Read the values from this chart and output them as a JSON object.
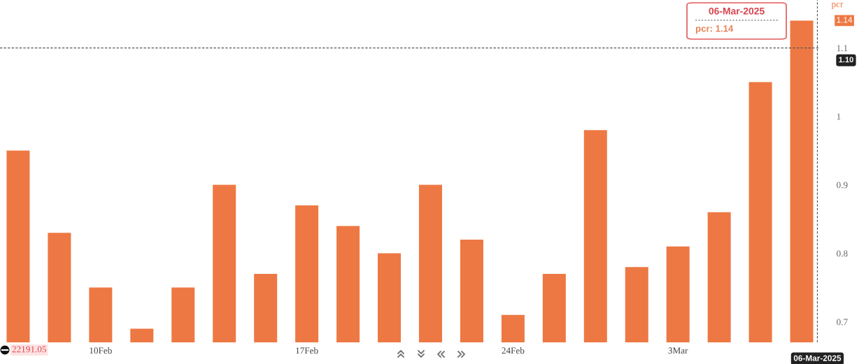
{
  "chart_data": {
    "type": "bar",
    "ylabel": "pcr",
    "categories": [
      null,
      null,
      "10Feb",
      null,
      null,
      null,
      null,
      "17Feb",
      null,
      null,
      null,
      null,
      "24Feb",
      null,
      null,
      null,
      "3Mar",
      null,
      null,
      null
    ],
    "values": [
      0.95,
      0.83,
      0.75,
      0.69,
      0.75,
      0.9,
      0.77,
      0.87,
      0.84,
      0.8,
      0.9,
      0.82,
      0.71,
      0.77,
      0.98,
      0.78,
      0.81,
      0.86,
      1.05,
      1.14
    ],
    "color": "#ee7843",
    "ylim": [
      0.67,
      1.17
    ],
    "yticks": [
      0.7,
      0.8,
      0.9,
      1,
      1.1
    ],
    "ref_lines": [
      {
        "axis": "y",
        "value": 1.1,
        "label": "1.10",
        "color": "#555555",
        "line_style": "dashed"
      },
      {
        "axis": "x",
        "label": "06-Mar-2025",
        "color": "#555555",
        "line_style": "dashed"
      }
    ],
    "annotations": [
      "1.14",
      "06-Mar-2025",
      "pcr: 1.14",
      "22191.05"
    ]
  }
}
